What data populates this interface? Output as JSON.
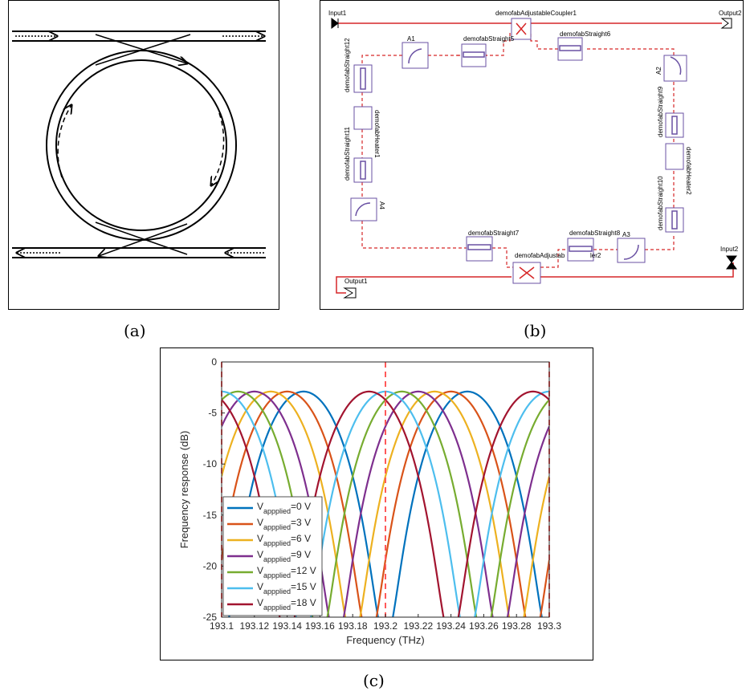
{
  "captions": {
    "a": "(a)",
    "b": "(b)",
    "c": "(c)"
  },
  "schematic": {
    "ports": {
      "input1": "Input1",
      "output2": "Output2",
      "input2": "Input2",
      "output1": "Output1"
    },
    "components": {
      "coupler1": "demofabAdjustableCoupler1",
      "coupler2_partial": "demofabAdjustab",
      "coupler2_tail": "ler2",
      "a1": "A1",
      "a2": "A2",
      "a3": "A3",
      "a4": "A4",
      "straight5": "demofabStraight5",
      "straight6": "demofabStraight6",
      "straight7": "demofabStraight7",
      "straight8": "demofabStraight8",
      "straight9": "demofabStraight9",
      "straight10": "demofabStraight10",
      "straight11": "demofabStraight11",
      "straight12": "demofabStraight12",
      "heater1": "demofabHeater1",
      "heater2": "demofabHeater2"
    },
    "colors": {
      "wire": "#d62728",
      "block": "#6a51a3"
    }
  },
  "chart_data": {
    "type": "line",
    "xlabel": "Frequency (THz)",
    "ylabel": "Frequency response (dB)",
    "xlim": [
      193.1,
      193.3
    ],
    "ylim": [
      -25,
      0
    ],
    "xticks": [
      "193.1",
      "193.12",
      "193.14",
      "193.16",
      "193.18",
      "193.2",
      "193.22",
      "193.24",
      "193.26",
      "193.28",
      "193.3"
    ],
    "yticks": [
      "0",
      "-5",
      "-10",
      "-15",
      "-20",
      "-25"
    ],
    "peak_db": -2.9,
    "dip_db": -24.5,
    "fsr_thz": 0.1,
    "vlines_x": [
      193.1,
      193.2,
      193.3
    ],
    "legend_position": "bottom-left",
    "series": [
      {
        "label": "=0 V",
        "notch_x": [
          193.2,
          193.3
        ],
        "color": "#0072bd"
      },
      {
        "label": "=3 V",
        "notch_x": [
          193.19,
          193.29
        ],
        "color": "#d95319"
      },
      {
        "label": "=6 V",
        "notch_x": [
          193.18,
          193.28
        ],
        "color": "#edb120"
      },
      {
        "label": "=9 V",
        "notch_x": [
          193.17,
          193.27
        ],
        "color": "#7e2f8e"
      },
      {
        "label": "=12 V",
        "notch_x": [
          193.16,
          193.26
        ],
        "color": "#77ac30"
      },
      {
        "label": "=15 V",
        "notch_x": [
          193.15,
          193.25
        ],
        "color": "#4dbeee"
      },
      {
        "label": "=18 V",
        "notch_x": [
          193.14,
          193.24
        ],
        "color": "#a2142f"
      }
    ],
    "legend_prefix": "V",
    "legend_subscript": "appplied"
  }
}
